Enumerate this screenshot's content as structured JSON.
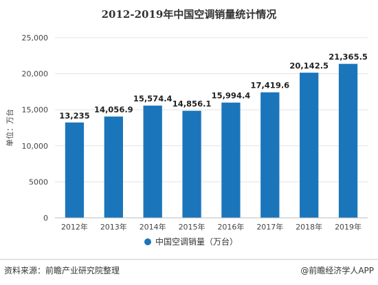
{
  "chart_data": {
    "type": "bar",
    "title": "2012-2019年中国空调销量统计情况",
    "ylabel": "单位：万台",
    "xlabel": "",
    "categories": [
      "2012年",
      "2013年",
      "2014年",
      "2015年",
      "2016年",
      "2017年",
      "2018年",
      "2019年"
    ],
    "series": [
      {
        "name": "中国空调销量（万台）",
        "values": [
          13235,
          14056.9,
          15574.4,
          14856.1,
          15994.4,
          17419.6,
          20142.5,
          21365.5
        ],
        "labels": [
          "13,235",
          "14,056.9",
          "15,574.4",
          "14,856.1",
          "15,994.4",
          "17,419.6",
          "20,142.5",
          "21,365.5"
        ],
        "color": "#1b75bb"
      }
    ],
    "yticks": [
      0,
      5000,
      10000,
      15000,
      20000,
      25000
    ],
    "ytick_labels": [
      "0",
      "5000",
      "10,000",
      "15,000",
      "20,000",
      "25,000"
    ],
    "ylim": [
      0,
      25000
    ],
    "grid": true,
    "legend_position": "bottom"
  },
  "footer": {
    "source": "资料来源：前瞻产业研究院整理",
    "brand": "@前瞻经济学人APP"
  }
}
